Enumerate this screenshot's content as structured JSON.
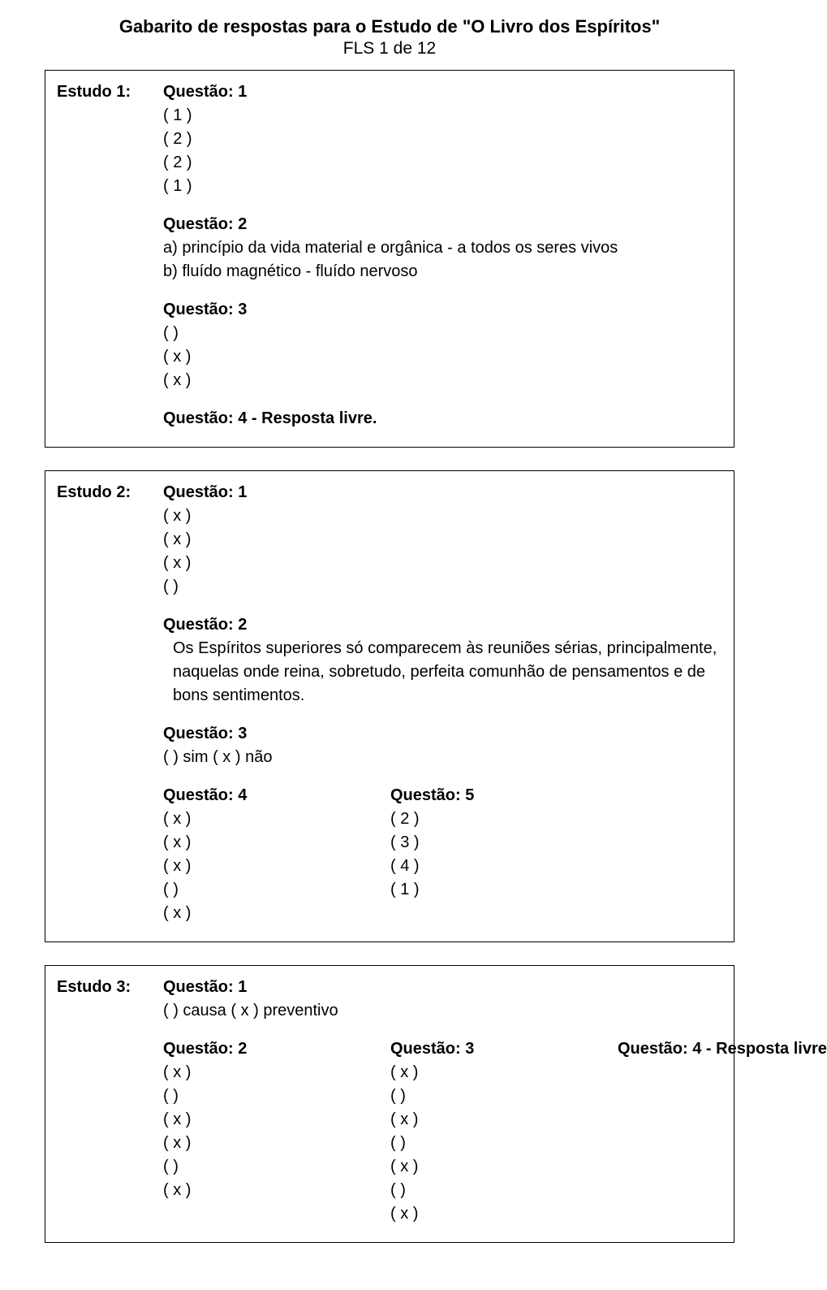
{
  "header": {
    "title": "Gabarito de respostas para o Estudo de \"O Livro dos Espíritos\"",
    "subtitle": "FLS 1 de 12"
  },
  "estudo1": {
    "label": "Estudo 1:",
    "q1": {
      "head": "Questão: 1",
      "l1": "(  1  )",
      "l2": "(  2  )",
      "l3": "(  2  )",
      "l4": "(  1  )"
    },
    "q2": {
      "head": "Questão: 2",
      "la": "a)  princípio da vida material e orgânica      -      a todos os seres vivos",
      "lb": "b)  fluído magnético      -      fluído nervoso"
    },
    "q3": {
      "head": "Questão: 3",
      "l1": "(      )",
      "l2": "(  x  )",
      "l3": "(  x  )"
    },
    "q4": {
      "text": "Questão: 4  - Resposta livre."
    }
  },
  "estudo2": {
    "label": "Estudo 2:",
    "q1": {
      "head": "Questão: 1",
      "l1": "(  x  )",
      "l2": "(  x  )",
      "l3": "(  x  )",
      "l4": "(      )"
    },
    "q2": {
      "head": "Questão: 2",
      "body": " Os Espíritos superiores só comparecem às reuniões sérias, principalmente, naquelas onde reina, sobretudo, perfeita comunhão de pensamentos e de  bons  sentimentos."
    },
    "q3": {
      "head": "Questão: 3",
      "line": "(     ) sim    ( x ) não"
    },
    "q4": {
      "head": "Questão: 4",
      "l1": "(  x  )",
      "l2": "(  x  )",
      "l3": "(  x  )",
      "l4": "(     )",
      "l5": "(  x  )"
    },
    "q5": {
      "head": "Questão: 5",
      "l1": "( 2 )",
      "l2": "( 3 )",
      "l3": "( 4 )",
      "l4": "( 1 )"
    }
  },
  "estudo3": {
    "label": "Estudo 3:",
    "q1": {
      "head": "Questão: 1",
      "line": "(    ) causa     (  x  ) preventivo"
    },
    "q2": {
      "head": "Questão: 2",
      "l1": "(  x  )",
      "l2": "(     )",
      "l3": "(  x  )",
      "l4": "(  x  )",
      "l5": "(     )",
      "l6": "(  x  )"
    },
    "q3": {
      "head": "Questão: 3",
      "l1": "(  x  )",
      "l2": "(     )",
      "l3": "(  x  )",
      "l4": "(     )",
      "l5": "(  x  )",
      "l6": "(     )",
      "l7": "(  x  )"
    },
    "q4": {
      "text": "Questão: 4  - Resposta livre"
    }
  }
}
